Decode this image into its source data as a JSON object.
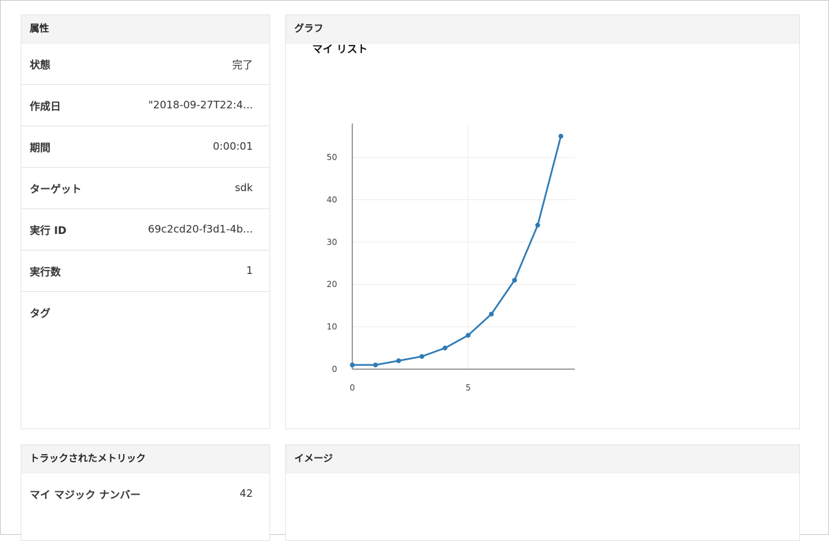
{
  "properties": {
    "header": "属性",
    "rows": [
      {
        "key": "状態",
        "value": "完了"
      },
      {
        "key": "作成日",
        "value": "\"2018-09-27T22:4..."
      },
      {
        "key": "期間",
        "value": "0:00:01"
      },
      {
        "key": "ターゲット",
        "value": "sdk"
      },
      {
        "key": "実行 ID",
        "value": "69c2cd20-f3d1-4b..."
      },
      {
        "key": "実行数",
        "value": "1"
      }
    ],
    "tags_label": "タグ"
  },
  "graph": {
    "header": "グラフ",
    "chart_title": "マイ リスト"
  },
  "metrics": {
    "header": "トラックされたメトリック",
    "rows": [
      {
        "key": "マイ マジック ナンバー",
        "value": "42"
      }
    ]
  },
  "images": {
    "header": "イメージ"
  },
  "colors": {
    "series": "#2e7bb6",
    "panel_header_bg": "#f4f4f4",
    "border": "#e3e3e3"
  },
  "chart_data": {
    "type": "line",
    "title": "マイ リスト",
    "xlabel": "",
    "ylabel": "",
    "x": [
      0,
      1,
      2,
      3,
      4,
      5,
      6,
      7,
      8,
      9
    ],
    "series": [
      {
        "values": [
          1,
          1,
          2,
          3,
          5,
          8,
          13,
          21,
          34,
          55
        ]
      }
    ],
    "xlim": [
      0,
      9.6
    ],
    "ylim": [
      0,
      58
    ],
    "x_ticks": [
      0,
      5
    ],
    "y_ticks": [
      0,
      10,
      20,
      30,
      40,
      50
    ],
    "grid": true,
    "legend": "none"
  }
}
